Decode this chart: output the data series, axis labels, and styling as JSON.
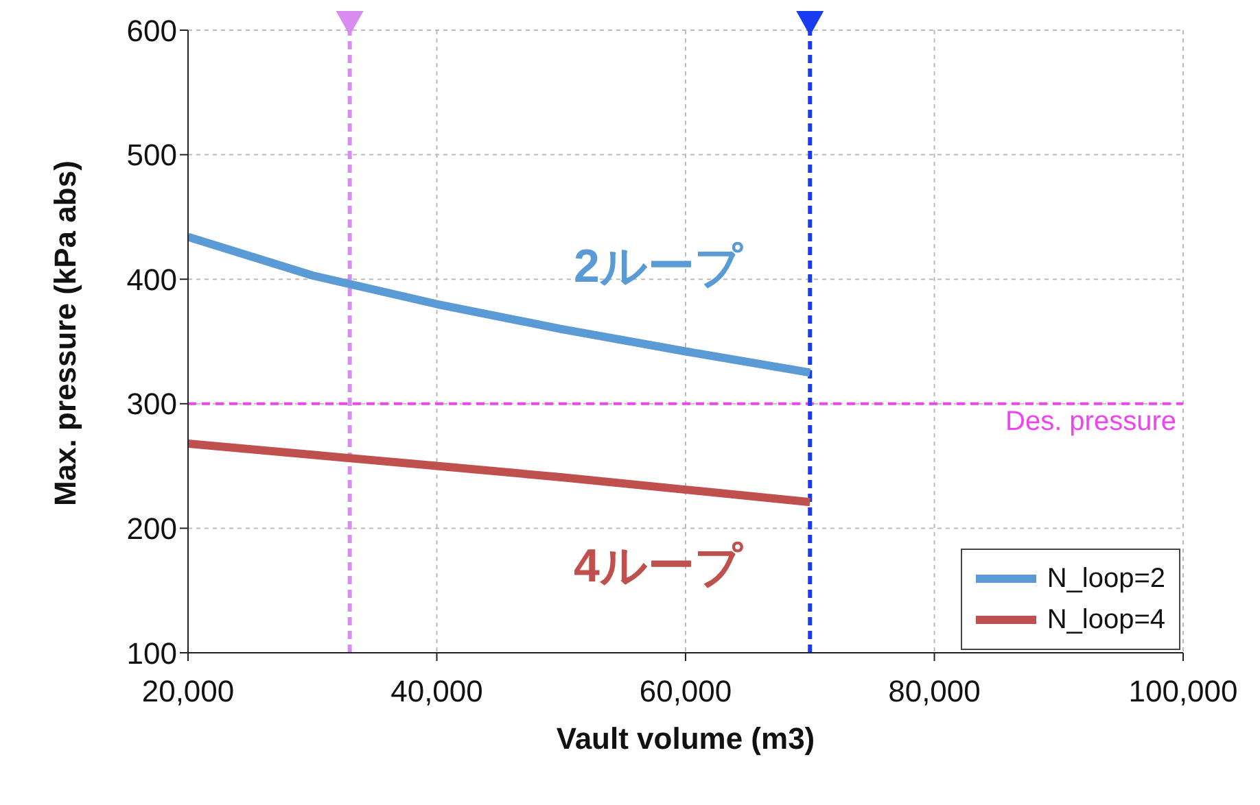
{
  "chart_data": {
    "type": "line",
    "xlabel": "Vault volume (m3)",
    "ylabel": "Max. pressure (kPa abs)",
    "xlim": [
      20000,
      100000
    ],
    "xticks": [
      {
        "value": 20000,
        "label": "20,000"
      },
      {
        "value": 40000,
        "label": "40,000"
      },
      {
        "value": 60000,
        "label": "60,000"
      },
      {
        "value": 80000,
        "label": "80,000"
      },
      {
        "value": 100000,
        "label": "100,000"
      }
    ],
    "ylim": [
      100,
      600
    ],
    "yticks": [
      100,
      200,
      300,
      400,
      500,
      600
    ],
    "series": [
      {
        "name": "N_loop=2",
        "color": "#5b9bd5",
        "x": [
          20000,
          30000,
          40000,
          50000,
          60000,
          70000
        ],
        "values": [
          434,
          403,
          380,
          360,
          342,
          325
        ]
      },
      {
        "name": "N_loop=4",
        "color": "#c0504d",
        "x": [
          20000,
          30000,
          40000,
          50000,
          60000,
          70000
        ],
        "values": [
          268,
          259,
          250,
          241,
          231,
          221
        ]
      }
    ],
    "ref_lines": [
      {
        "axis": "y",
        "value": 300,
        "label": "Des. pressure",
        "color": "#ee44ee",
        "line_style": "dashed"
      },
      {
        "axis": "x",
        "value": 33000,
        "label": null,
        "color": "#d98cf0",
        "line_style": "dashed"
      },
      {
        "axis": "x",
        "value": 70000,
        "label": null,
        "color": "#1a3cf0",
        "line_style": "dashed"
      }
    ],
    "annotations": [
      "2ループ",
      "4ループ"
    ],
    "grid": true,
    "legend": "bottom right",
    "marker": "none",
    "line_style": "solid"
  }
}
